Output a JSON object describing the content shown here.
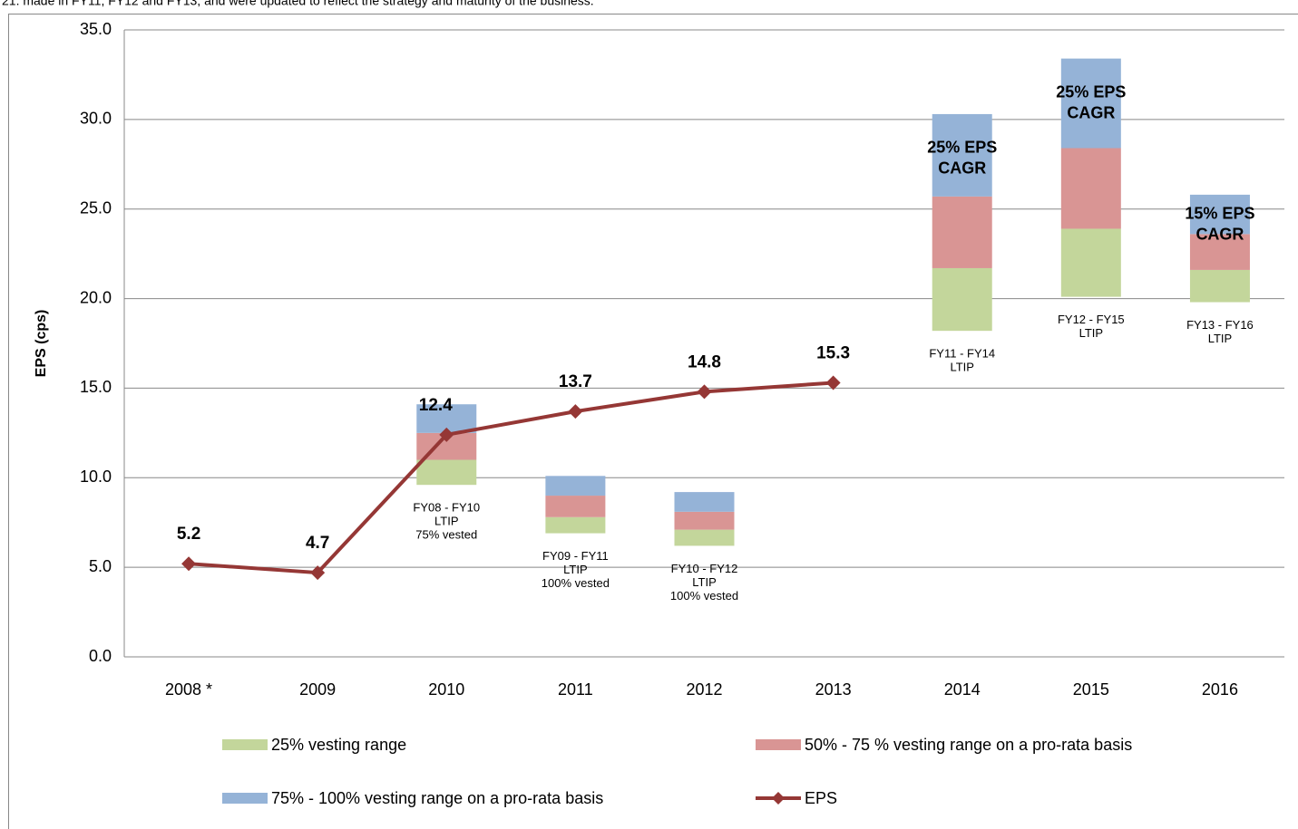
{
  "header_text": "21. made in FY11, FY12 and FY13, and were updated to reflect the strategy and maturity of the business.",
  "chart_data": {
    "type": "floating_stacked_bar_line",
    "y_label": "EPS (cps)",
    "categories": [
      "2008 *",
      "2009",
      "2010",
      "2011",
      "2012",
      "2013",
      "2014",
      "2015",
      "2016"
    ],
    "ylim": [
      0,
      35
    ],
    "yticks": [
      {
        "value": 0,
        "label": "0.0"
      },
      {
        "value": 5,
        "label": "5.0"
      },
      {
        "value": 10,
        "label": "10.0"
      },
      {
        "value": 15,
        "label": "15.0"
      },
      {
        "value": 20,
        "label": "20.0"
      },
      {
        "value": 25,
        "label": "25.0"
      },
      {
        "value": 30,
        "label": "30.0"
      },
      {
        "value": 35,
        "label": "35.0"
      }
    ],
    "grid": true,
    "bar_base": [
      null,
      null,
      9.6,
      6.9,
      6.2,
      null,
      18.2,
      20.1,
      19.8
    ],
    "series": [
      {
        "name": "25% vesting range",
        "color": "#c3d69b",
        "values": [
          null,
          null,
          1.4,
          0.9,
          0.9,
          null,
          3.5,
          3.8,
          1.8
        ]
      },
      {
        "name": "50% - 75 % vesting range on a pro-rata basis",
        "color": "#d99594",
        "values": [
          null,
          null,
          1.5,
          1.2,
          1.0,
          null,
          4.0,
          4.5,
          2.0
        ]
      },
      {
        "name": "75% - 100% vesting range on a pro-rata basis",
        "color": "#95b3d7",
        "values": [
          null,
          null,
          1.6,
          1.1,
          1.1,
          null,
          4.6,
          5.0,
          2.2
        ]
      },
      {
        "name": "EPS",
        "color": "#953735",
        "type": "line",
        "values": [
          5.2,
          4.7,
          12.4,
          13.7,
          14.8,
          15.3,
          null,
          null,
          null
        ]
      }
    ],
    "bar_labels": [
      null,
      null,
      [
        "FY08 - FY10",
        "LTIP",
        "75% vested"
      ],
      [
        "FY09 - FY11",
        "LTIP",
        "100%  vested"
      ],
      [
        "FY10 - FY12",
        "LTIP",
        "100%  vested"
      ],
      null,
      [
        "FY11 - FY14",
        "LTIP"
      ],
      [
        "FY12 - FY15",
        "LTIP"
      ],
      [
        "FY13 - FY16",
        "LTIP"
      ]
    ],
    "cagr_labels": [
      null,
      null,
      null,
      null,
      null,
      null,
      [
        "25% EPS",
        "CAGR"
      ],
      [
        "25% EPS",
        "CAGR"
      ],
      [
        "15% EPS",
        "CAGR"
      ]
    ]
  }
}
